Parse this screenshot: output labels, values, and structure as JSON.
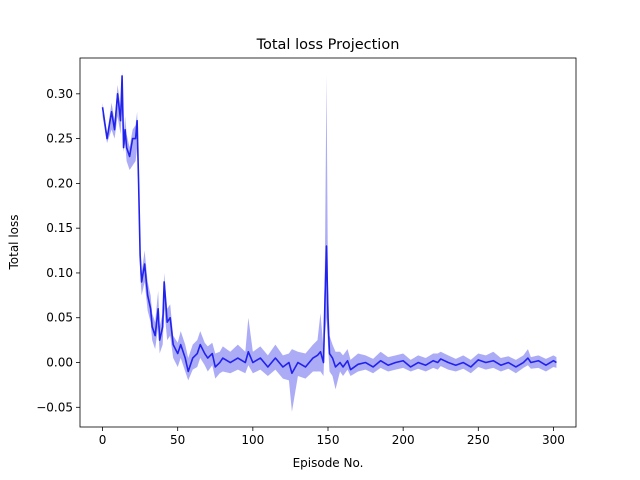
{
  "chart_data": {
    "type": "line",
    "title": "Total loss Projection",
    "xlabel": "Episode No.",
    "ylabel": "Total loss",
    "xlim": [
      -15,
      315
    ],
    "ylim": [
      -0.072,
      0.34
    ],
    "xticks": [
      0,
      50,
      100,
      150,
      200,
      250,
      300
    ],
    "xtick_labels": [
      "0",
      "50",
      "100",
      "150",
      "200",
      "250",
      "300"
    ],
    "yticks": [
      -0.05,
      0.0,
      0.05,
      0.1,
      0.15,
      0.2,
      0.25,
      0.3
    ],
    "ytick_labels": [
      "−0.05",
      "0.00",
      "0.05",
      "0.10",
      "0.15",
      "0.20",
      "0.25",
      "0.30"
    ],
    "grid": false,
    "legend": "none",
    "colors": {
      "line": "#2222ee",
      "band": "#5a5aee"
    },
    "series": [
      {
        "x": [
          0,
          3,
          6,
          8,
          10,
          12,
          13,
          14,
          15,
          16,
          18,
          20,
          22,
          23,
          24,
          25,
          26,
          28,
          30,
          32,
          33,
          35,
          37,
          38,
          40,
          41,
          43,
          45,
          47,
          50,
          52,
          55,
          57,
          60,
          63,
          65,
          68,
          70,
          73,
          75,
          78,
          80,
          85,
          90,
          95,
          97,
          100,
          105,
          110,
          115,
          120,
          124,
          126,
          130,
          135,
          140,
          143,
          145,
          147,
          148,
          149,
          150,
          151,
          153,
          155,
          158,
          160,
          163,
          165,
          170,
          175,
          180,
          185,
          190,
          195,
          200,
          205,
          210,
          215,
          220,
          223,
          225,
          230,
          235,
          240,
          245,
          250,
          255,
          260,
          265,
          270,
          275,
          280,
          283,
          285,
          290,
          295,
          300,
          302
        ],
        "values": [
          0.285,
          0.25,
          0.28,
          0.26,
          0.3,
          0.27,
          0.32,
          0.24,
          0.26,
          0.24,
          0.23,
          0.25,
          0.25,
          0.27,
          0.2,
          0.12,
          0.09,
          0.11,
          0.075,
          0.06,
          0.04,
          0.03,
          0.06,
          0.025,
          0.04,
          0.09,
          0.045,
          0.05,
          0.02,
          0.01,
          0.02,
          0.005,
          -0.01,
          0.005,
          0.01,
          0.02,
          0.01,
          0.005,
          0.01,
          -0.005,
          0.0,
          0.005,
          0.0,
          0.005,
          0.0,
          0.012,
          0.0,
          0.005,
          -0.005,
          0.005,
          -0.005,
          0.0,
          -0.012,
          0.0,
          -0.005,
          0.005,
          0.008,
          0.012,
          0.0,
          0.07,
          0.13,
          0.05,
          0.01,
          0.005,
          -0.005,
          0.0,
          -0.005,
          0.002,
          -0.008,
          -0.002,
          0.0,
          -0.005,
          0.002,
          -0.003,
          0.0,
          0.002,
          -0.005,
          0.0,
          -0.003,
          0.002,
          0.0,
          0.004,
          0.0,
          -0.003,
          0.0,
          -0.005,
          0.003,
          0.0,
          0.002,
          -0.003,
          0.0,
          -0.005,
          0.0,
          0.005,
          0.0,
          0.002,
          -0.003,
          0.002,
          0.0
        ],
        "lower": [
          0.275,
          0.245,
          0.26,
          0.25,
          0.275,
          0.255,
          0.285,
          0.235,
          0.245,
          0.225,
          0.215,
          0.22,
          0.225,
          0.24,
          0.18,
          0.1,
          0.075,
          0.09,
          0.058,
          0.045,
          0.025,
          0.015,
          0.04,
          0.01,
          0.02,
          0.06,
          0.025,
          0.03,
          0.005,
          -0.005,
          0.005,
          -0.01,
          -0.02,
          -0.008,
          -0.005,
          0.005,
          -0.003,
          -0.01,
          -0.003,
          -0.018,
          -0.012,
          -0.01,
          -0.012,
          -0.008,
          -0.012,
          -0.003,
          -0.012,
          -0.008,
          -0.015,
          -0.008,
          -0.018,
          -0.02,
          -0.055,
          -0.015,
          -0.018,
          -0.01,
          -0.01,
          -0.01,
          -0.015,
          0.03,
          0.05,
          0.02,
          -0.01,
          -0.015,
          -0.03,
          -0.01,
          -0.015,
          -0.008,
          -0.015,
          -0.01,
          -0.008,
          -0.012,
          -0.006,
          -0.01,
          -0.008,
          -0.006,
          -0.01,
          -0.007,
          -0.01,
          -0.006,
          -0.008,
          -0.004,
          -0.008,
          -0.01,
          -0.007,
          -0.012,
          -0.005,
          -0.008,
          -0.006,
          -0.01,
          -0.007,
          -0.012,
          -0.006,
          -0.003,
          -0.007,
          -0.006,
          -0.01,
          -0.005,
          -0.006
        ],
        "upper": [
          0.29,
          0.255,
          0.29,
          0.27,
          0.31,
          0.285,
          0.325,
          0.25,
          0.275,
          0.255,
          0.24,
          0.26,
          0.265,
          0.28,
          0.22,
          0.135,
          0.1,
          0.125,
          0.09,
          0.075,
          0.055,
          0.045,
          0.08,
          0.04,
          0.055,
          0.1,
          0.06,
          0.065,
          0.03,
          0.022,
          0.035,
          0.02,
          0.005,
          0.02,
          0.025,
          0.035,
          0.022,
          0.018,
          0.022,
          0.01,
          0.012,
          0.018,
          0.012,
          0.02,
          0.012,
          0.05,
          0.012,
          0.018,
          0.008,
          0.02,
          0.008,
          0.01,
          0.015,
          0.012,
          0.01,
          0.02,
          0.025,
          0.055,
          0.015,
          0.12,
          0.32,
          0.085,
          0.03,
          0.02,
          0.012,
          0.012,
          0.008,
          0.015,
          0.003,
          0.01,
          0.008,
          0.004,
          0.012,
          0.006,
          0.008,
          0.01,
          0.003,
          0.008,
          0.005,
          0.01,
          0.01,
          0.012,
          0.008,
          0.004,
          0.008,
          0.003,
          0.01,
          0.008,
          0.012,
          0.005,
          0.007,
          0.003,
          0.008,
          0.015,
          0.006,
          0.008,
          0.004,
          0.008,
          0.006
        ]
      }
    ]
  }
}
